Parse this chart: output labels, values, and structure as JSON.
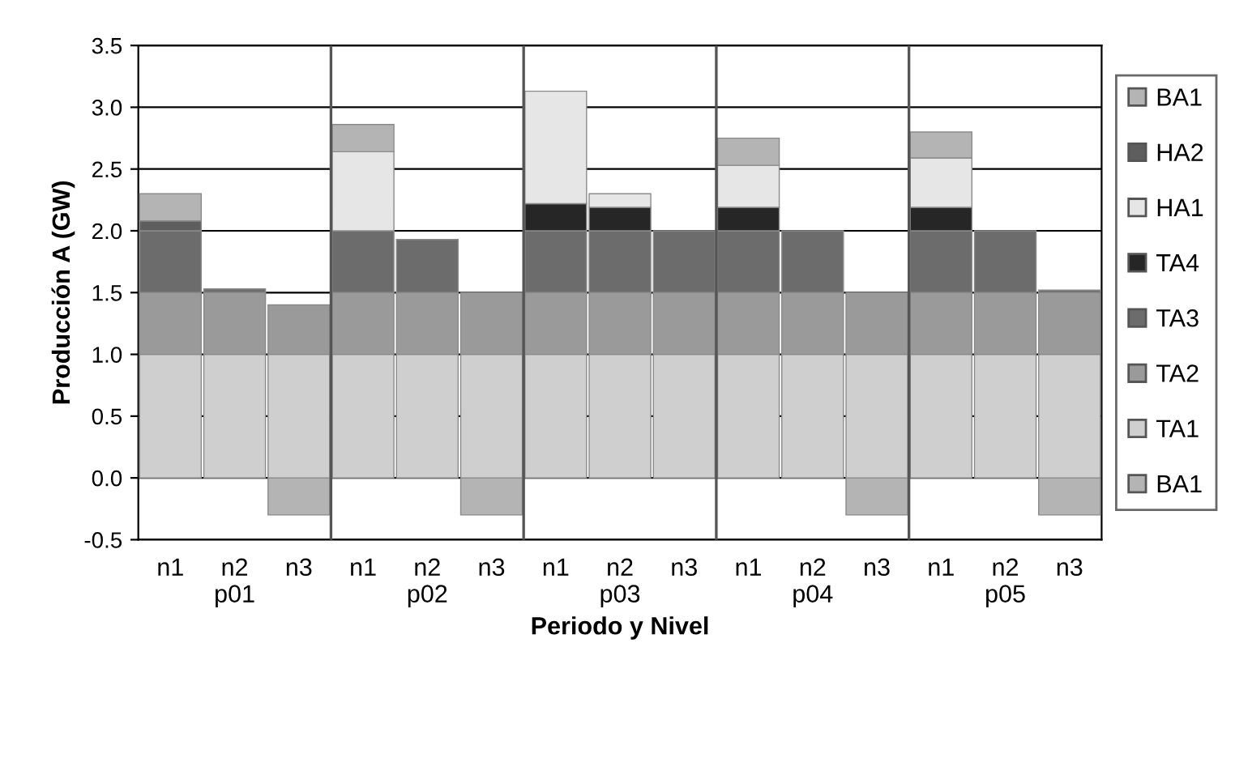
{
  "chart_data": {
    "type": "bar",
    "stacked": true,
    "xlabel": "Periodo y Nivel",
    "ylabel": "Producción A (GW)",
    "categories": [
      "n1",
      "n2\np01",
      "n3",
      "n1",
      "n2\np02",
      "n3",
      "n1",
      "n2\np03",
      "n3",
      "n1",
      "n2\np04",
      "n3",
      "n1",
      "n2\np05",
      "n3"
    ],
    "series": [
      {
        "name": "BA1",
        "color": "#b4b4b4",
        "values": [
          null,
          null,
          -0.3,
          null,
          null,
          -0.3,
          null,
          null,
          null,
          null,
          null,
          -0.3,
          null,
          null,
          -0.3
        ]
      },
      {
        "name": "TA1",
        "color": "#cfcfcf",
        "values": [
          1,
          1,
          1,
          1,
          1,
          1,
          1,
          1,
          1,
          1,
          1,
          1,
          1,
          1,
          1
        ]
      },
      {
        "name": "TA2",
        "color": "#9a9a9a",
        "values": [
          0.5,
          0.5,
          0.4,
          0.5,
          0.5,
          0.5,
          0.5,
          0.5,
          0.5,
          0.5,
          0.5,
          0.5,
          0.5,
          0.5,
          0.5
        ]
      },
      {
        "name": "TA3",
        "color": "#6c6c6c",
        "values": [
          0.5,
          0.03,
          null,
          0.5,
          0.43,
          null,
          0.5,
          0.5,
          0.5,
          0.5,
          0.5,
          null,
          0.5,
          0.5,
          0.02
        ]
      },
      {
        "name": "TA4",
        "color": "#262626",
        "values": [
          null,
          null,
          null,
          null,
          null,
          null,
          0.22,
          0.19,
          null,
          0.19,
          null,
          null,
          0.19,
          null,
          null
        ]
      },
      {
        "name": "HA1",
        "color": "#e6e6e6",
        "values": [
          null,
          null,
          null,
          0.64,
          null,
          null,
          0.91,
          0.11,
          null,
          0.34,
          null,
          null,
          0.4,
          null,
          null
        ]
      },
      {
        "name": "HA2",
        "color": "#5e5e5e",
        "values": [
          0.08,
          null,
          null,
          null,
          null,
          null,
          null,
          null,
          null,
          null,
          null,
          null,
          null,
          null,
          null
        ]
      },
      {
        "name": "BA1",
        "color": "#b4b4b4",
        "values": [
          0.22,
          null,
          null,
          0.22,
          null,
          null,
          null,
          null,
          null,
          0.22,
          null,
          null,
          0.21,
          null,
          null
        ]
      }
    ],
    "ylim": [
      -0.5,
      3.5
    ],
    "yticks": [
      -0.5,
      {
        "value": 0,
        "label": "0.0"
      },
      0.5,
      {
        "value": 1,
        "label": "1.0"
      },
      1.5,
      {
        "value": 2,
        "label": "2.0"
      },
      2.5,
      {
        "value": 3,
        "label": "3.0"
      },
      3.5
    ],
    "grid": true,
    "legend": "right"
  }
}
